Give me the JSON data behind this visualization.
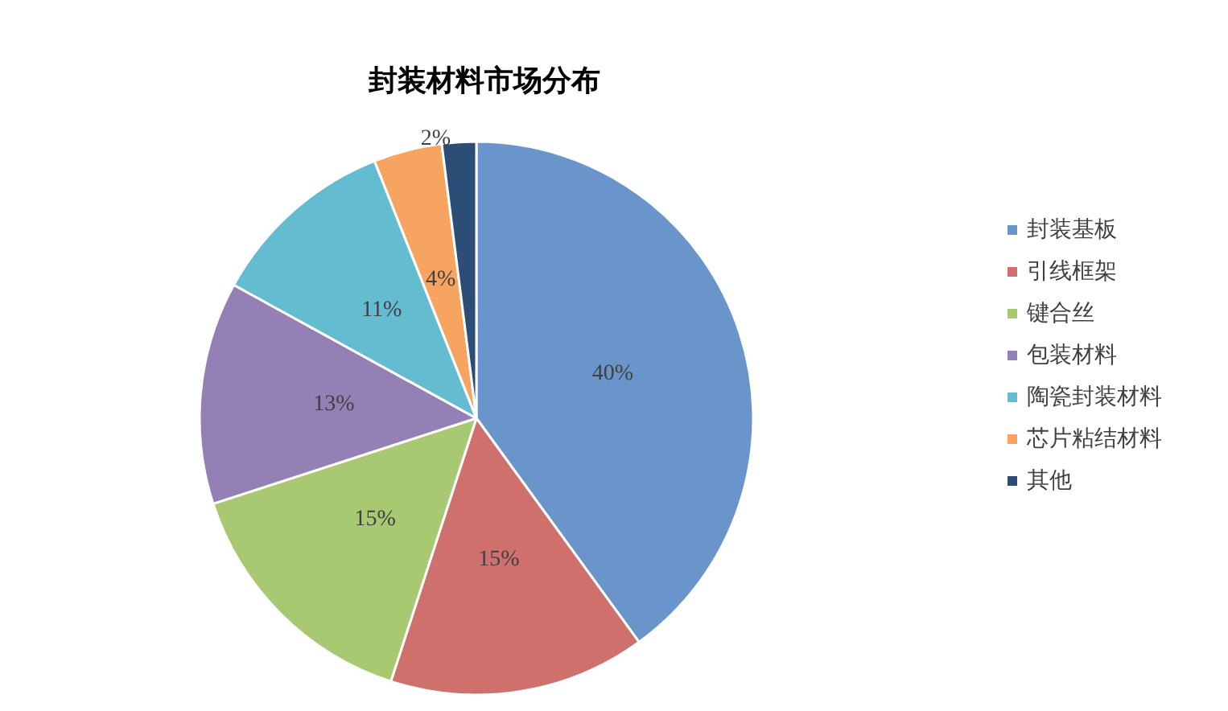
{
  "chart_data": {
    "type": "pie",
    "title": "封装材料市场分布",
    "categories": [
      "封装基板",
      "引线框架",
      "键合丝",
      "包装材料",
      "陶瓷封装材料",
      "芯片粘结材料",
      "其他"
    ],
    "values": [
      40,
      15,
      15,
      13,
      11,
      4,
      2
    ],
    "colors": [
      "#6a95cb",
      "#d0706d",
      "#a8c872",
      "#9480b4",
      "#64bcd1",
      "#f8a461",
      "#2c4d75"
    ],
    "value_labels": [
      "40%",
      "15%",
      "15%",
      "13%",
      "11%",
      "4%",
      "2%"
    ],
    "legend": "right"
  }
}
